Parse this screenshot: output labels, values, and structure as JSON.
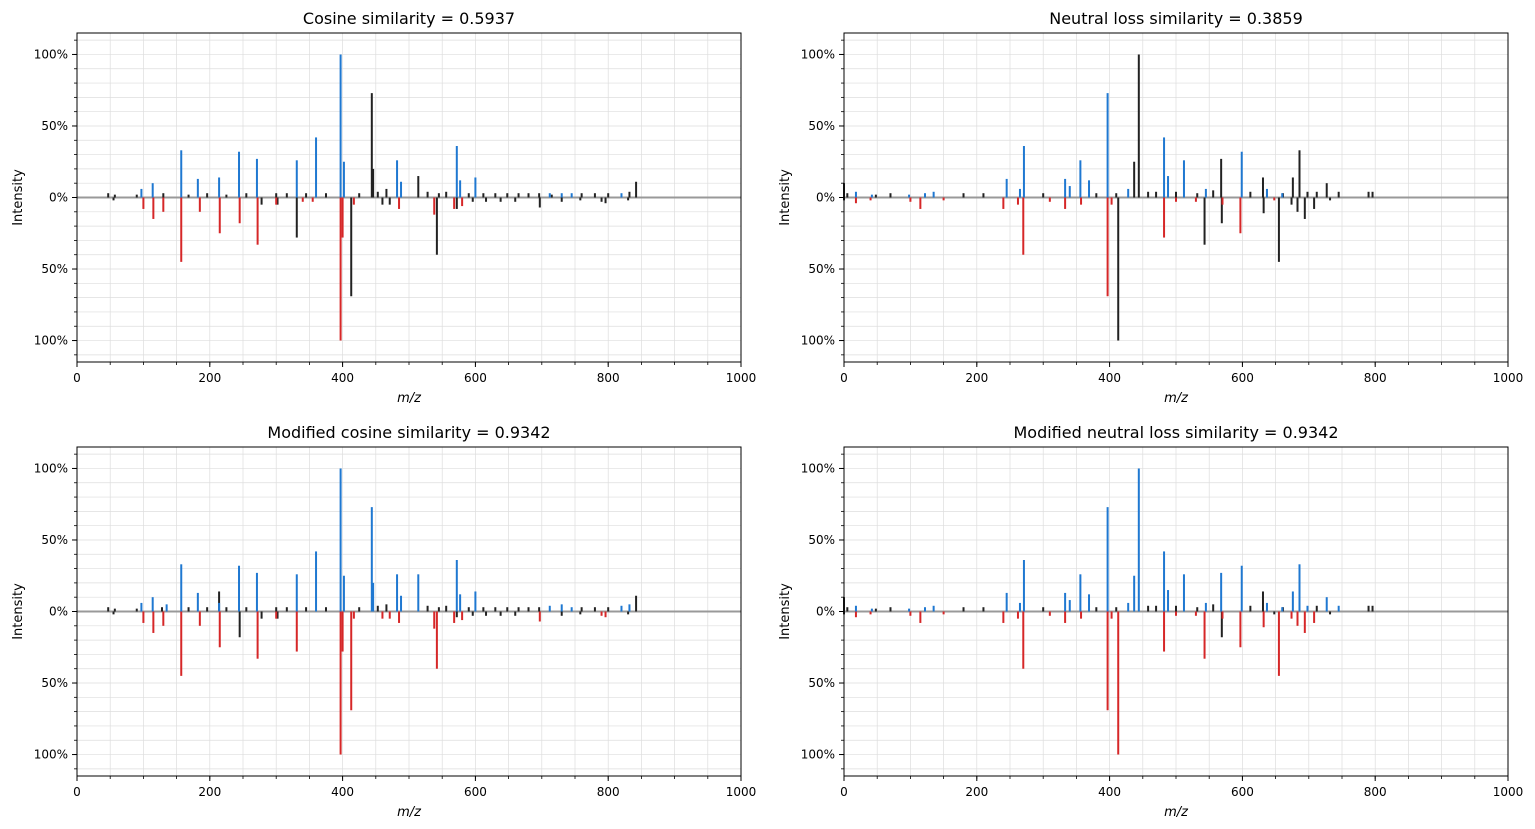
{
  "figure_title": "",
  "colors": {
    "matched": "#1f78d1",
    "matched_ref": "#d62728",
    "unmatched": "#222222",
    "baseline": "#999999",
    "grid": "#dddddd"
  },
  "chart_data": [
    {
      "type": "spectrum_mirror",
      "title": "Cosine similarity = 0.5937",
      "xlabel": "m/z",
      "ylabel": "Intensity",
      "xlim": [
        0,
        1000
      ],
      "ylim_pct": [
        -115,
        115
      ],
      "xticks": [
        "0",
        "200",
        "400",
        "600",
        "800",
        "1000"
      ],
      "yticks": [
        "100%",
        "50%",
        "0%",
        "50%",
        "100%"
      ],
      "top_matched": [
        [
          97,
          6
        ],
        [
          114,
          10
        ],
        [
          157,
          33
        ],
        [
          182,
          13
        ],
        [
          214,
          14
        ],
        [
          244,
          32
        ],
        [
          271,
          27
        ],
        [
          331,
          26
        ],
        [
          360,
          42
        ],
        [
          397,
          100
        ],
        [
          402,
          25
        ],
        [
          482,
          26
        ],
        [
          488,
          11
        ],
        [
          572,
          36
        ],
        [
          577,
          12
        ],
        [
          600,
          14
        ],
        [
          712,
          3
        ],
        [
          730,
          3
        ],
        [
          745,
          3
        ],
        [
          820,
          3
        ]
      ],
      "top_unmatched": [
        [
          47,
          3
        ],
        [
          57,
          2
        ],
        [
          90,
          2
        ],
        [
          130,
          3
        ],
        [
          168,
          2
        ],
        [
          196,
          3
        ],
        [
          225,
          2
        ],
        [
          255,
          3
        ],
        [
          300,
          3
        ],
        [
          316,
          3
        ],
        [
          345,
          3
        ],
        [
          375,
          3
        ],
        [
          425,
          3
        ],
        [
          444,
          73
        ],
        [
          446,
          20
        ],
        [
          453,
          4
        ],
        [
          466,
          6
        ],
        [
          514,
          15
        ],
        [
          528,
          4
        ],
        [
          545,
          3
        ],
        [
          556,
          4
        ],
        [
          590,
          3
        ],
        [
          612,
          3
        ],
        [
          630,
          3
        ],
        [
          648,
          3
        ],
        [
          665,
          3
        ],
        [
          680,
          3
        ],
        [
          696,
          3
        ],
        [
          715,
          2
        ],
        [
          760,
          3
        ],
        [
          780,
          3
        ],
        [
          800,
          3
        ],
        [
          832,
          4
        ],
        [
          842,
          11
        ]
      ],
      "bottom_matched": [
        [
          100,
          8
        ],
        [
          115,
          15
        ],
        [
          130,
          10
        ],
        [
          157,
          45
        ],
        [
          185,
          10
        ],
        [
          215,
          25
        ],
        [
          245,
          18
        ],
        [
          272,
          33
        ],
        [
          300,
          5
        ],
        [
          340,
          3
        ],
        [
          355,
          3
        ],
        [
          397,
          100
        ],
        [
          400,
          28
        ],
        [
          417,
          5
        ],
        [
          485,
          8
        ],
        [
          538,
          12
        ],
        [
          568,
          8
        ],
        [
          580,
          6
        ]
      ],
      "bottom_unmatched": [
        [
          55,
          2
        ],
        [
          278,
          5
        ],
        [
          302,
          5
        ],
        [
          331,
          28
        ],
        [
          413,
          69
        ],
        [
          460,
          5
        ],
        [
          471,
          5
        ],
        [
          542,
          40
        ],
        [
          572,
          8
        ],
        [
          596,
          3
        ],
        [
          616,
          3
        ],
        [
          638,
          3
        ],
        [
          660,
          3
        ],
        [
          697,
          7
        ],
        [
          730,
          3
        ],
        [
          758,
          2
        ],
        [
          790,
          3
        ],
        [
          796,
          4
        ],
        [
          830,
          2
        ]
      ]
    },
    {
      "type": "spectrum_mirror",
      "title": "Neutral loss similarity = 0.3859",
      "xlabel": "m/z",
      "ylabel": "Intensity",
      "xlim": [
        0,
        1000
      ],
      "ylim_pct": [
        -115,
        115
      ],
      "xticks": [
        "0",
        "200",
        "400",
        "600",
        "800",
        "1000"
      ],
      "yticks": [
        "100%",
        "50%",
        "0%",
        "50%",
        "100%"
      ],
      "top_matched": [
        [
          18,
          4
        ],
        [
          42,
          2
        ],
        [
          98,
          2
        ],
        [
          122,
          3
        ],
        [
          135,
          4
        ],
        [
          245,
          13
        ],
        [
          265,
          6
        ],
        [
          271,
          36
        ],
        [
          333,
          13
        ],
        [
          340,
          8
        ],
        [
          356,
          26
        ],
        [
          369,
          12
        ],
        [
          397,
          73
        ],
        [
          428,
          6
        ],
        [
          482,
          42
        ],
        [
          488,
          15
        ],
        [
          512,
          26
        ],
        [
          545,
          6
        ],
        [
          599,
          32
        ],
        [
          637,
          6
        ],
        [
          660,
          3
        ]
      ],
      "top_unmatched": [
        [
          0,
          10
        ],
        [
          5,
          3
        ],
        [
          48,
          2
        ],
        [
          70,
          3
        ],
        [
          180,
          3
        ],
        [
          210,
          3
        ],
        [
          300,
          3
        ],
        [
          380,
          3
        ],
        [
          410,
          3
        ],
        [
          437,
          25
        ],
        [
          444,
          100
        ],
        [
          458,
          4
        ],
        [
          470,
          4
        ],
        [
          500,
          4
        ],
        [
          532,
          3
        ],
        [
          556,
          5
        ],
        [
          568,
          27
        ],
        [
          612,
          4
        ],
        [
          631,
          14
        ],
        [
          661,
          3
        ],
        [
          676,
          14
        ],
        [
          686,
          33
        ],
        [
          698,
          4
        ],
        [
          712,
          4
        ],
        [
          727,
          10
        ],
        [
          745,
          4
        ],
        [
          790,
          4
        ],
        [
          796,
          4
        ]
      ],
      "bottom_matched": [
        [
          18,
          4
        ],
        [
          40,
          2
        ],
        [
          100,
          3
        ],
        [
          115,
          8
        ],
        [
          150,
          2
        ],
        [
          240,
          8
        ],
        [
          262,
          5
        ],
        [
          270,
          40
        ],
        [
          310,
          3
        ],
        [
          333,
          8
        ],
        [
          357,
          5
        ],
        [
          397,
          69
        ],
        [
          403,
          5
        ],
        [
          482,
          28
        ],
        [
          500,
          3
        ],
        [
          530,
          3
        ],
        [
          570,
          5
        ],
        [
          597,
          25
        ],
        [
          648,
          2
        ]
      ],
      "bottom_unmatched": [
        [
          0,
          2
        ],
        [
          413,
          100
        ],
        [
          543,
          33
        ],
        [
          569,
          18
        ],
        [
          632,
          11
        ],
        [
          655,
          45
        ],
        [
          674,
          5
        ],
        [
          683,
          10
        ],
        [
          694,
          15
        ],
        [
          708,
          8
        ],
        [
          732,
          2
        ]
      ]
    },
    {
      "type": "spectrum_mirror",
      "title": "Modified cosine similarity = 0.9342",
      "xlabel": "m/z",
      "ylabel": "Intensity",
      "xlim": [
        0,
        1000
      ],
      "ylim_pct": [
        -115,
        115
      ],
      "xticks": [
        "0",
        "200",
        "400",
        "600",
        "800",
        "1000"
      ],
      "yticks": [
        "100%",
        "50%",
        "0%",
        "50%",
        "100%"
      ],
      "top_matched": [
        [
          97,
          6
        ],
        [
          114,
          10
        ],
        [
          135,
          5
        ],
        [
          157,
          33
        ],
        [
          182,
          13
        ],
        [
          214,
          6
        ],
        [
          244,
          32
        ],
        [
          271,
          27
        ],
        [
          331,
          26
        ],
        [
          360,
          42
        ],
        [
          397,
          100
        ],
        [
          402,
          25
        ],
        [
          444,
          73
        ],
        [
          446,
          20
        ],
        [
          482,
          26
        ],
        [
          488,
          11
        ],
        [
          514,
          26
        ],
        [
          572,
          36
        ],
        [
          577,
          12
        ],
        [
          600,
          14
        ],
        [
          712,
          4
        ],
        [
          730,
          5
        ],
        [
          745,
          3
        ],
        [
          820,
          4
        ],
        [
          832,
          5
        ]
      ],
      "top_unmatched": [
        [
          47,
          3
        ],
        [
          57,
          2
        ],
        [
          90,
          2
        ],
        [
          128,
          3
        ],
        [
          168,
          3
        ],
        [
          196,
          3
        ],
        [
          214,
          14
        ],
        [
          225,
          3
        ],
        [
          255,
          3
        ],
        [
          300,
          3
        ],
        [
          316,
          3
        ],
        [
          345,
          3
        ],
        [
          375,
          3
        ],
        [
          425,
          3
        ],
        [
          453,
          4
        ],
        [
          466,
          5
        ],
        [
          528,
          4
        ],
        [
          545,
          3
        ],
        [
          556,
          4
        ],
        [
          590,
          3
        ],
        [
          612,
          3
        ],
        [
          630,
          3
        ],
        [
          648,
          3
        ],
        [
          665,
          3
        ],
        [
          680,
          3
        ],
        [
          696,
          3
        ],
        [
          760,
          3
        ],
        [
          780,
          3
        ],
        [
          800,
          3
        ],
        [
          842,
          11
        ]
      ],
      "bottom_matched": [
        [
          100,
          8
        ],
        [
          115,
          15
        ],
        [
          130,
          10
        ],
        [
          157,
          45
        ],
        [
          185,
          10
        ],
        [
          215,
          25
        ],
        [
          272,
          33
        ],
        [
          300,
          5
        ],
        [
          331,
          28
        ],
        [
          397,
          100
        ],
        [
          400,
          28
        ],
        [
          413,
          69
        ],
        [
          417,
          5
        ],
        [
          460,
          5
        ],
        [
          471,
          5
        ],
        [
          485,
          8
        ],
        [
          538,
          12
        ],
        [
          542,
          40
        ],
        [
          568,
          8
        ],
        [
          580,
          6
        ],
        [
          697,
          7
        ],
        [
          790,
          3
        ],
        [
          796,
          4
        ]
      ],
      "bottom_unmatched": [
        [
          55,
          2
        ],
        [
          245,
          18
        ],
        [
          278,
          5
        ],
        [
          302,
          5
        ],
        [
          572,
          4
        ],
        [
          596,
          3
        ],
        [
          616,
          3
        ],
        [
          638,
          3
        ],
        [
          660,
          3
        ],
        [
          730,
          3
        ],
        [
          758,
          2
        ],
        [
          830,
          2
        ]
      ]
    },
    {
      "type": "spectrum_mirror",
      "title": "Modified neutral loss similarity = 0.9342",
      "xlabel": "m/z",
      "ylabel": "Intensity",
      "xlim": [
        0,
        1000
      ],
      "ylim_pct": [
        -115,
        115
      ],
      "xticks": [
        "0",
        "200",
        "400",
        "600",
        "800",
        "1000"
      ],
      "yticks": [
        "100%",
        "50%",
        "0%",
        "50%",
        "100%"
      ],
      "top_matched": [
        [
          18,
          4
        ],
        [
          42,
          2
        ],
        [
          98,
          2
        ],
        [
          122,
          3
        ],
        [
          135,
          4
        ],
        [
          245,
          13
        ],
        [
          265,
          6
        ],
        [
          271,
          36
        ],
        [
          333,
          13
        ],
        [
          340,
          8
        ],
        [
          356,
          26
        ],
        [
          369,
          12
        ],
        [
          397,
          73
        ],
        [
          428,
          6
        ],
        [
          437,
          25
        ],
        [
          444,
          100
        ],
        [
          482,
          42
        ],
        [
          488,
          15
        ],
        [
          512,
          26
        ],
        [
          545,
          6
        ],
        [
          568,
          27
        ],
        [
          599,
          32
        ],
        [
          637,
          6
        ],
        [
          660,
          3
        ],
        [
          676,
          14
        ],
        [
          686,
          33
        ],
        [
          698,
          4
        ],
        [
          727,
          10
        ],
        [
          745,
          4
        ]
      ],
      "top_unmatched": [
        [
          0,
          10
        ],
        [
          5,
          3
        ],
        [
          48,
          2
        ],
        [
          70,
          3
        ],
        [
          180,
          3
        ],
        [
          210,
          3
        ],
        [
          300,
          3
        ],
        [
          380,
          3
        ],
        [
          410,
          3
        ],
        [
          458,
          4
        ],
        [
          470,
          4
        ],
        [
          500,
          4
        ],
        [
          532,
          3
        ],
        [
          556,
          5
        ],
        [
          612,
          4
        ],
        [
          631,
          14
        ],
        [
          661,
          3
        ],
        [
          712,
          4
        ],
        [
          790,
          4
        ],
        [
          796,
          4
        ]
      ],
      "bottom_matched": [
        [
          18,
          4
        ],
        [
          40,
          2
        ],
        [
          100,
          3
        ],
        [
          115,
          8
        ],
        [
          150,
          2
        ],
        [
          240,
          8
        ],
        [
          262,
          5
        ],
        [
          270,
          40
        ],
        [
          310,
          3
        ],
        [
          333,
          8
        ],
        [
          357,
          5
        ],
        [
          397,
          69
        ],
        [
          403,
          5
        ],
        [
          413,
          100
        ],
        [
          482,
          28
        ],
        [
          500,
          3
        ],
        [
          530,
          3
        ],
        [
          543,
          33
        ],
        [
          570,
          5
        ],
        [
          597,
          25
        ],
        [
          632,
          11
        ],
        [
          655,
          45
        ],
        [
          674,
          5
        ],
        [
          683,
          10
        ],
        [
          694,
          15
        ],
        [
          708,
          8
        ]
      ],
      "bottom_unmatched": [
        [
          0,
          2
        ],
        [
          569,
          18
        ],
        [
          648,
          2
        ],
        [
          732,
          2
        ]
      ]
    }
  ]
}
